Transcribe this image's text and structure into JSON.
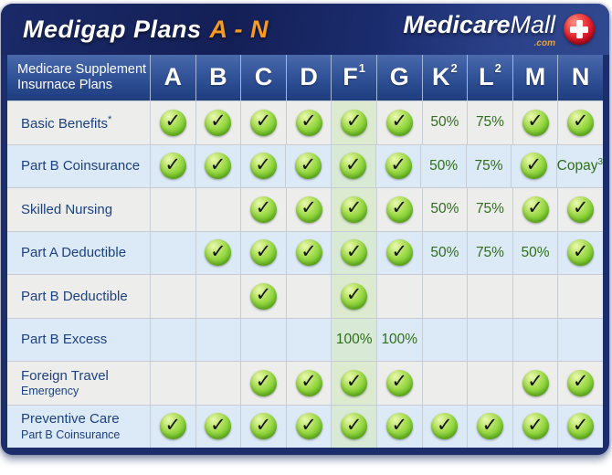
{
  "header": {
    "title_main": "Medigap Plans",
    "title_range": "A - N",
    "logo_bold": "Medicare",
    "logo_light": "Mall",
    "logo_tld": ".com",
    "logo_cross_icon": "red-cross"
  },
  "table": {
    "corner_line1": "Medicare Supplement",
    "corner_line2": "Insurnace Plans",
    "columns": [
      "A",
      "B",
      "C",
      "D",
      "F^1",
      "G",
      "K^2",
      "L^2",
      "M",
      "N"
    ],
    "highlight_column_index": 4,
    "check_glyph": "✓",
    "rows": [
      {
        "label": "Basic Benefits^*",
        "label2": "",
        "cells": [
          "check",
          "check",
          "check",
          "check",
          "check",
          "check",
          "50%",
          "75%",
          "check",
          "check"
        ]
      },
      {
        "label": "Part B Coinsurance",
        "label2": "",
        "cells": [
          "check",
          "check",
          "check",
          "check",
          "check",
          "check",
          "50%",
          "75%",
          "check",
          "Copay^3"
        ]
      },
      {
        "label": "Skilled Nursing",
        "label2": "",
        "cells": [
          "",
          "",
          "check",
          "check",
          "check",
          "check",
          "50%",
          "75%",
          "check",
          "check"
        ]
      },
      {
        "label": "Part A Deductible",
        "label2": "",
        "cells": [
          "",
          "check",
          "check",
          "check",
          "check",
          "check",
          "50%",
          "75%",
          "50%",
          "check"
        ]
      },
      {
        "label": "Part B Deductible",
        "label2": "",
        "cells": [
          "",
          "",
          "check",
          "",
          "check",
          "",
          "",
          "",
          "",
          ""
        ]
      },
      {
        "label": "Part B Excess",
        "label2": "",
        "cells": [
          "",
          "",
          "",
          "",
          "100%",
          "100%",
          "",
          "",
          "",
          ""
        ]
      },
      {
        "label": "Foreign Travel",
        "label2": "Emergency",
        "cells": [
          "",
          "",
          "check",
          "check",
          "check",
          "check",
          "",
          "",
          "check",
          "check"
        ]
      },
      {
        "label": "Preventive Care",
        "label2": "Part B Coinsurance",
        "cells": [
          "check",
          "check",
          "check",
          "check",
          "check",
          "check",
          "check",
          "check",
          "check",
          "check"
        ]
      }
    ]
  },
  "colors": {
    "accent_orange": "#f79b1f",
    "navy_frame": "#1b2d6b",
    "header_blue_top": "#4a6aab",
    "header_blue_bottom": "#1e3d7e",
    "row_gray": "#ededec",
    "row_blue": "#dce9f6",
    "highlight_green_on_gray": "#dcebcf",
    "highlight_green_on_blue": "#d8e9d6",
    "check_green": "#7cc832",
    "percent_green": "#2e6f1b",
    "label_blue": "#1c4181",
    "cross_red": "#e01b2c"
  },
  "chart_data": {
    "type": "table",
    "title": "Medigap Plans A - N",
    "row_header": "Medicare Supplement Insurnace Plans",
    "columns": [
      "A",
      "B",
      "C",
      "D",
      "F1",
      "G",
      "K2",
      "L2",
      "M",
      "N"
    ],
    "highlighted_column": "F1",
    "rows": [
      {
        "benefit": "Basic Benefits*",
        "values": [
          "✓",
          "✓",
          "✓",
          "✓",
          "✓",
          "✓",
          "50%",
          "75%",
          "✓",
          "✓"
        ]
      },
      {
        "benefit": "Part B Coinsurance",
        "values": [
          "✓",
          "✓",
          "✓",
          "✓",
          "✓",
          "✓",
          "50%",
          "75%",
          "✓",
          "Copay3"
        ]
      },
      {
        "benefit": "Skilled Nursing",
        "values": [
          "",
          "",
          "✓",
          "✓",
          "✓",
          "✓",
          "50%",
          "75%",
          "✓",
          "✓"
        ]
      },
      {
        "benefit": "Part A Deductible",
        "values": [
          "",
          "✓",
          "✓",
          "✓",
          "✓",
          "✓",
          "50%",
          "75%",
          "50%",
          "✓"
        ]
      },
      {
        "benefit": "Part B Deductible",
        "values": [
          "",
          "",
          "✓",
          "",
          "✓",
          "",
          "",
          "",
          "",
          ""
        ]
      },
      {
        "benefit": "Part B Excess",
        "values": [
          "",
          "",
          "",
          "",
          "100%",
          "100%",
          "",
          "",
          "",
          ""
        ]
      },
      {
        "benefit": "Foreign Travel Emergency",
        "values": [
          "",
          "",
          "✓",
          "✓",
          "✓",
          "✓",
          "",
          "",
          "✓",
          "✓"
        ]
      },
      {
        "benefit": "Preventive Care Part B Coinsurance",
        "values": [
          "✓",
          "✓",
          "✓",
          "✓",
          "✓",
          "✓",
          "✓",
          "✓",
          "✓",
          "✓"
        ]
      }
    ]
  }
}
